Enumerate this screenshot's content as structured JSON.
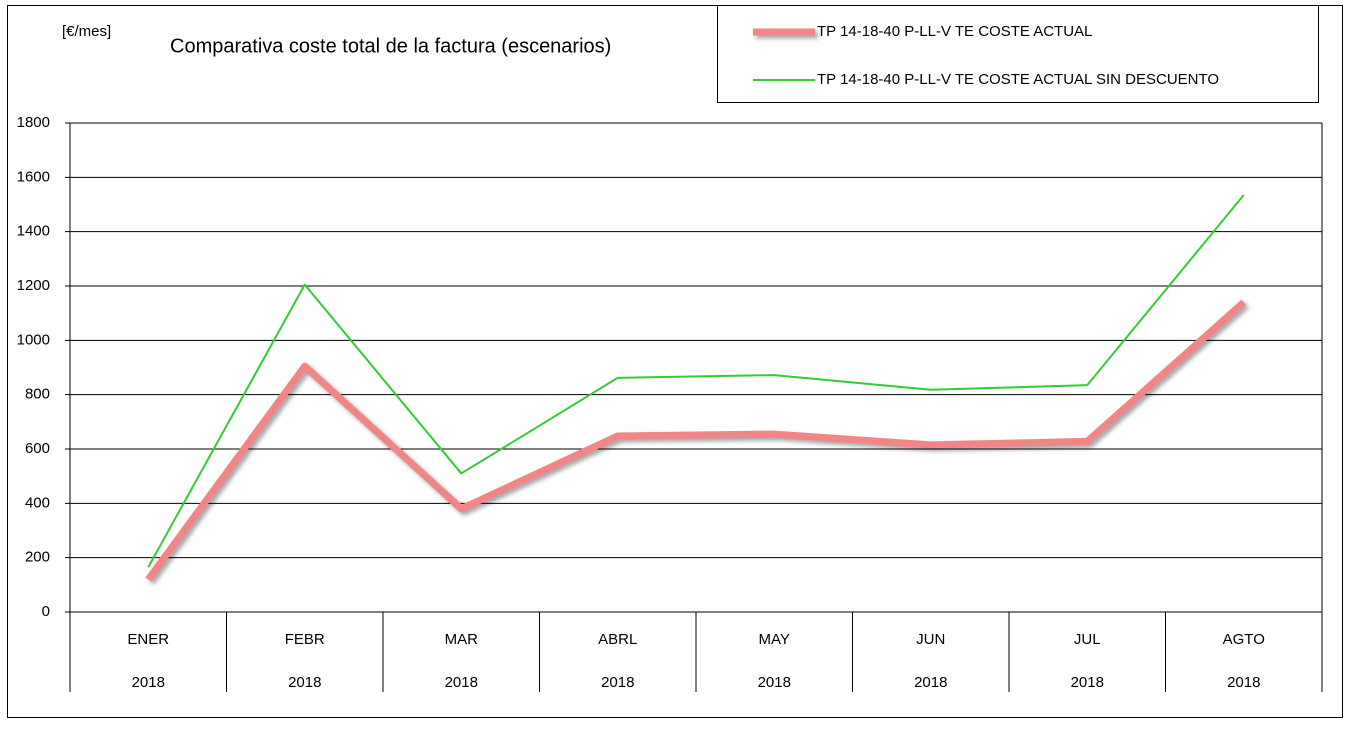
{
  "chart_data": {
    "type": "line",
    "title": "Comparativa coste total de la factura (escenarios)",
    "unit_label": "[€/mes]",
    "categories": [
      [
        "ENER",
        "2018"
      ],
      [
        "FEBR",
        "2018"
      ],
      [
        "MAR",
        "2018"
      ],
      [
        "ABRL",
        "2018"
      ],
      [
        "MAY",
        "2018"
      ],
      [
        "JUN",
        "2018"
      ],
      [
        "JUL",
        "2018"
      ],
      [
        "AGTO",
        "2018"
      ]
    ],
    "series": [
      {
        "name": "TP 14-18-40 P-LL-V TE COSTE ACTUAL",
        "color": "#f28585",
        "values": [
          120,
          905,
          380,
          648,
          655,
          615,
          628,
          1140
        ]
      },
      {
        "name": "TP 14-18-40 P-LL-V TE COSTE ACTUAL SIN DESCUENTO",
        "color": "#33cc33",
        "values": [
          165,
          1205,
          510,
          862,
          872,
          818,
          835,
          1535
        ]
      }
    ],
    "ylim": [
      0,
      1800
    ],
    "yticks": [
      0,
      200,
      400,
      600,
      800,
      1000,
      1200,
      1400,
      1600,
      1800
    ],
    "grid": true
  }
}
